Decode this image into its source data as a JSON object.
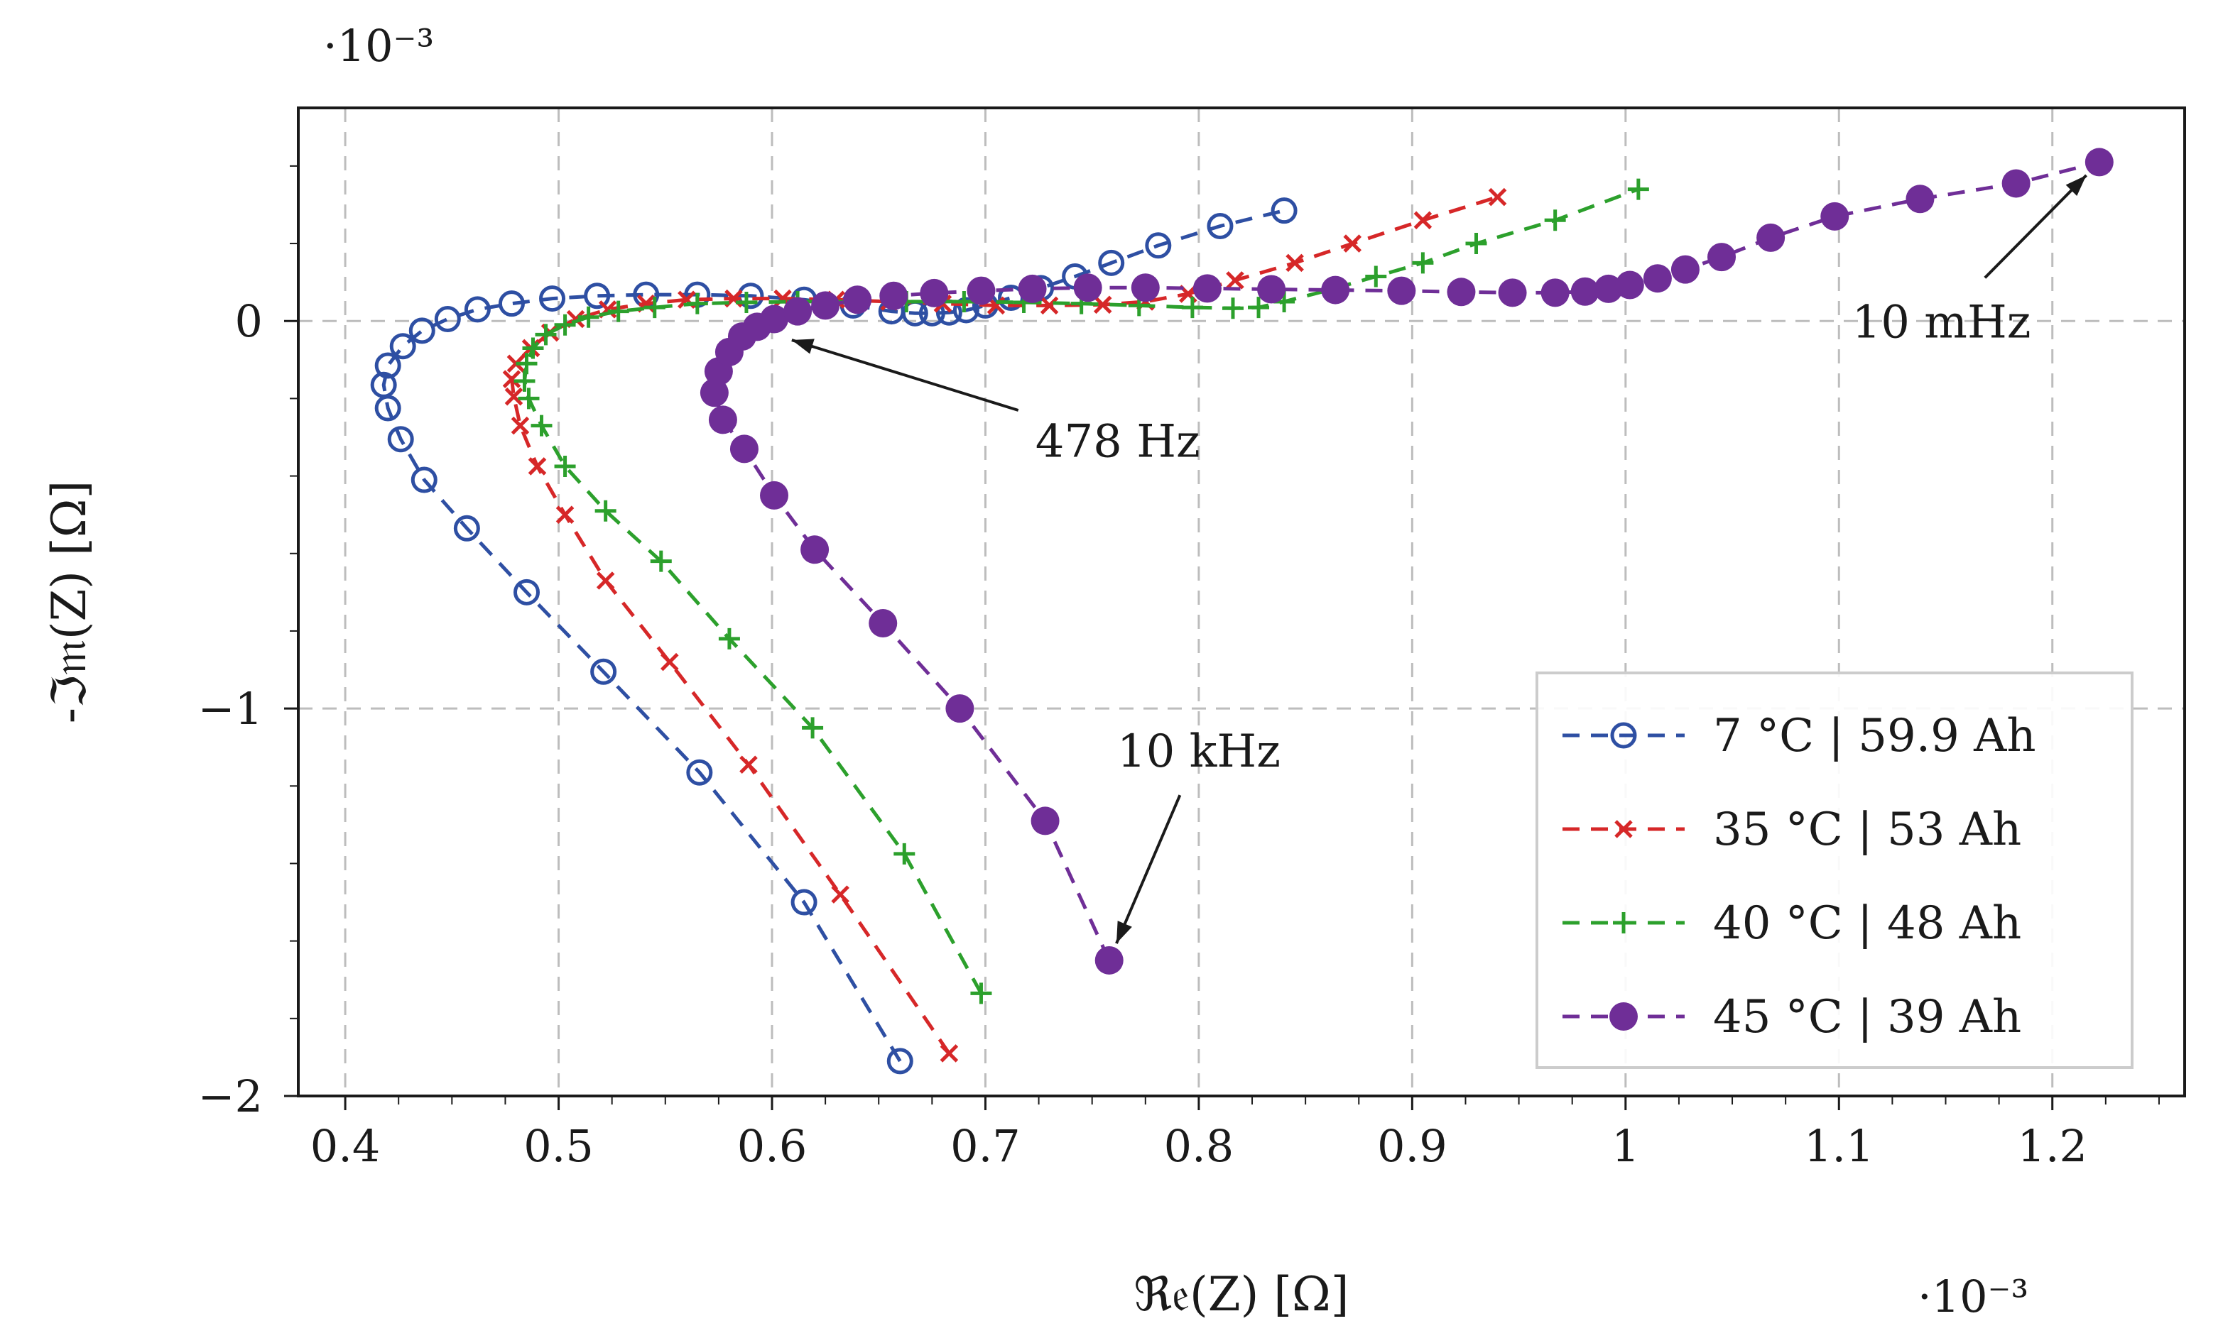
{
  "chart_data": {
    "type": "scatter",
    "title": "",
    "xlabel": "ℜ𝔢(Z) [Ω]",
    "ylabel": "-ℑ𝔪(Z) [Ω]",
    "x_exponent_label": "·10⁻³",
    "y_exponent_label": "·10⁻³",
    "xlim": [
      0.378,
      1.262
    ],
    "ylim": [
      -2.0,
      0.55
    ],
    "x_unit": "×10⁻³ Ω",
    "y_unit": "×10⁻³ Ω",
    "xticks": [
      0.4,
      0.5,
      0.6,
      0.7,
      0.8,
      0.9,
      1.0,
      1.1,
      1.2
    ],
    "xtick_labels": [
      "0.4",
      "0.5",
      "0.6",
      "0.7",
      "0.8",
      "0.9",
      "1",
      "1.1",
      "1.2"
    ],
    "yticks": [
      -2,
      -1,
      0
    ],
    "ytick_labels": [
      "−2",
      "−1",
      "0"
    ],
    "grid": true,
    "legend_position": "bottom-right",
    "series": [
      {
        "name": "7 °C | 59.9 Ah",
        "color": "#2e4fa3",
        "marker": "open-circle",
        "x": [
          0.66,
          0.615,
          0.566,
          0.521,
          0.485,
          0.457,
          0.437,
          0.426,
          0.42,
          0.418,
          0.42,
          0.427,
          0.436,
          0.448,
          0.462,
          0.478,
          0.497,
          0.518,
          0.541,
          0.565,
          0.59,
          0.615,
          0.638,
          0.656,
          0.667,
          0.675,
          0.683,
          0.691,
          0.7,
          0.712,
          0.726,
          0.742,
          0.759,
          0.781,
          0.81,
          0.84
        ],
        "y": [
          -1.91,
          -1.5,
          -1.165,
          -0.905,
          -0.7,
          -0.535,
          -0.41,
          -0.305,
          -0.225,
          -0.165,
          -0.115,
          -0.065,
          -0.025,
          0.005,
          0.03,
          0.045,
          0.058,
          0.065,
          0.068,
          0.068,
          0.065,
          0.055,
          0.04,
          0.025,
          0.02,
          0.02,
          0.022,
          0.028,
          0.04,
          0.06,
          0.085,
          0.115,
          0.15,
          0.195,
          0.245,
          0.285
        ]
      },
      {
        "name": "35 °C | 53 Ah",
        "color": "#d62728",
        "marker": "x-cross",
        "x": [
          0.683,
          0.632,
          0.589,
          0.552,
          0.522,
          0.503,
          0.49,
          0.482,
          0.479,
          0.478,
          0.48,
          0.487,
          0.496,
          0.508,
          0.523,
          0.541,
          0.56,
          0.582,
          0.605,
          0.63,
          0.655,
          0.68,
          0.705,
          0.73,
          0.755,
          0.775,
          0.795,
          0.817,
          0.845,
          0.872,
          0.905,
          0.94
        ],
        "y": [
          -1.89,
          -1.48,
          -1.145,
          -0.88,
          -0.67,
          -0.5,
          -0.375,
          -0.27,
          -0.195,
          -0.15,
          -0.11,
          -0.07,
          -0.03,
          0.005,
          0.03,
          0.045,
          0.055,
          0.058,
          0.058,
          0.055,
          0.05,
          0.045,
          0.04,
          0.04,
          0.042,
          0.05,
          0.07,
          0.105,
          0.15,
          0.2,
          0.26,
          0.32
        ]
      },
      {
        "name": "40 °C | 48 Ah",
        "color": "#2ca02c",
        "marker": "plus",
        "x": [
          0.698,
          0.662,
          0.619,
          0.58,
          0.548,
          0.522,
          0.503,
          0.492,
          0.486,
          0.484,
          0.485,
          0.488,
          0.494,
          0.503,
          0.514,
          0.528,
          0.545,
          0.565,
          0.588,
          0.612,
          0.638,
          0.663,
          0.69,
          0.718,
          0.745,
          0.772,
          0.797,
          0.816,
          0.828,
          0.84,
          0.861,
          0.883,
          0.905,
          0.93,
          0.967,
          1.006
        ],
        "y": [
          -1.735,
          -1.375,
          -1.05,
          -0.82,
          -0.62,
          -0.49,
          -0.375,
          -0.27,
          -0.2,
          -0.155,
          -0.11,
          -0.07,
          -0.035,
          -0.01,
          0.01,
          0.025,
          0.035,
          0.045,
          0.048,
          0.05,
          0.05,
          0.05,
          0.05,
          0.048,
          0.045,
          0.04,
          0.035,
          0.033,
          0.035,
          0.05,
          0.08,
          0.115,
          0.15,
          0.2,
          0.26,
          0.34
        ]
      },
      {
        "name": "45 °C | 39 Ah",
        "color": "#6f2e97",
        "marker": "filled-circle",
        "x": [
          0.758,
          0.728,
          0.688,
          0.652,
          0.62,
          0.601,
          0.587,
          0.577,
          0.573,
          0.575,
          0.58,
          0.586,
          0.593,
          0.601,
          0.612,
          0.625,
          0.64,
          0.657,
          0.676,
          0.698,
          0.722,
          0.748,
          0.775,
          0.804,
          0.834,
          0.864,
          0.895,
          0.923,
          0.947,
          0.967,
          0.981,
          0.992,
          1.002,
          1.015,
          1.028,
          1.045,
          1.068,
          1.098,
          1.138,
          1.183,
          1.222
        ],
        "y": [
          -1.65,
          -1.29,
          -1.0,
          -0.78,
          -0.59,
          -0.45,
          -0.33,
          -0.255,
          -0.185,
          -0.13,
          -0.08,
          -0.04,
          -0.015,
          0.005,
          0.025,
          0.04,
          0.055,
          0.065,
          0.072,
          0.078,
          0.083,
          0.086,
          0.086,
          0.084,
          0.082,
          0.08,
          0.078,
          0.075,
          0.073,
          0.073,
          0.076,
          0.083,
          0.093,
          0.11,
          0.133,
          0.165,
          0.215,
          0.27,
          0.315,
          0.355,
          0.41
        ]
      }
    ],
    "annotations": [
      {
        "text": "10 mHz",
        "point_x": 1.222,
        "point_y": 0.41,
        "text_x": 1.148,
        "text_y": -0.002
      },
      {
        "text": "478 Hz",
        "point_x": 0.601,
        "point_y": -0.035,
        "text_x": 0.762,
        "text_y": -0.31
      },
      {
        "text": "10 kHz",
        "point_x": 0.758,
        "point_y": -1.65,
        "text_x": 0.8,
        "text_y": -1.11
      }
    ]
  }
}
